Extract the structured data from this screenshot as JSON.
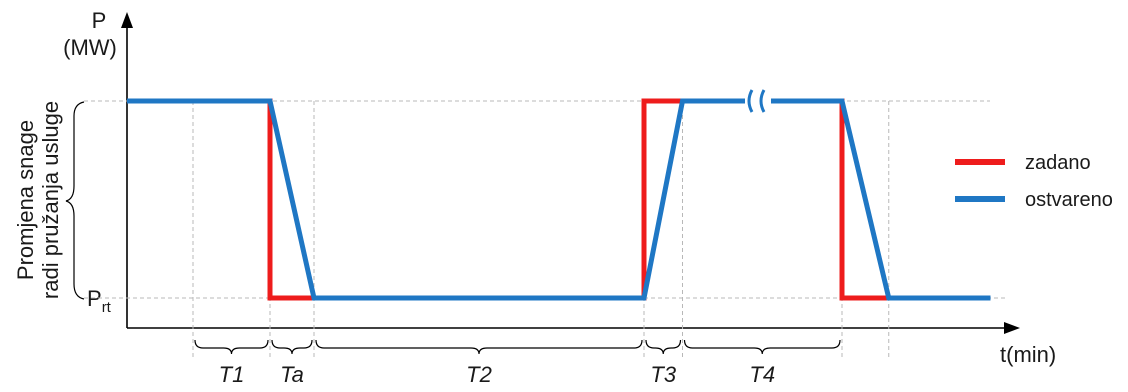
{
  "chart_data": {
    "type": "line",
    "y_axis": {
      "title_line1": "P",
      "title_line2": "(MW)",
      "label": "Promjena snage",
      "label_line2": "radi pružanja usluge"
    },
    "x_axis": {
      "label": "t(min)"
    },
    "level_low": {
      "base": "P",
      "sub": "rt"
    },
    "axis_break": true,
    "grid": "dashed",
    "legend": {
      "placement": "right"
    },
    "series": [
      {
        "name": "zadano",
        "color": "#ee1c1c",
        "x": [
          0,
          2.6,
          2.6,
          9.4,
          9.4,
          10.1,
          13.0,
          13.0,
          14.0
        ],
        "y": [
          1,
          1,
          0,
          0,
          1,
          1,
          1,
          0,
          0
        ]
      },
      {
        "name": "ostvareno",
        "color": "#1f77c4",
        "x": [
          0,
          2.6,
          3.4,
          9.4,
          10.1,
          13.0,
          13.85,
          15.7
        ],
        "y": [
          1,
          1,
          0,
          0,
          1,
          1,
          0,
          0
        ]
      }
    ],
    "segments": [
      {
        "label": "T1",
        "from": 1.2,
        "to": 2.6
      },
      {
        "label": "Ta",
        "from": 2.6,
        "to": 3.4
      },
      {
        "label": "T2",
        "from": 3.4,
        "to": 9.4
      },
      {
        "label": "T3",
        "from": 9.4,
        "to": 10.1
      },
      {
        "label": "T4",
        "from": 10.1,
        "to": 13.0
      }
    ],
    "guide_x": [
      1.2,
      2.6,
      3.4,
      9.4,
      10.1,
      13.0,
      13.85
    ]
  }
}
